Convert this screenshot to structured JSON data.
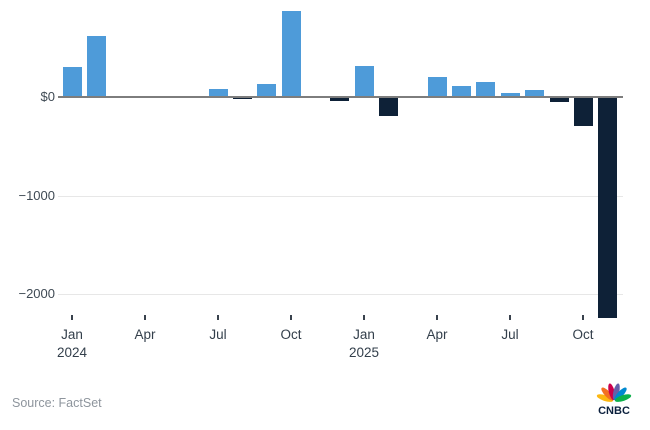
{
  "chart_data": {
    "type": "bar",
    "x": [
      "Jan 2024",
      "Feb 2024",
      "Mar 2024",
      "Apr 2024",
      "May 2024",
      "Jun 2024",
      "Jul 2024",
      "Aug 2024",
      "Sep 2024",
      "Oct 2024",
      "Nov 2024",
      "Dec 2024",
      "Jan 2025",
      "Feb 2025",
      "Mar 2025",
      "Apr 2025",
      "May 2025",
      "Jun 2025",
      "Jul 2025",
      "Aug 2025",
      "Sep 2025",
      "Oct 2025",
      "Nov 2025"
    ],
    "values": [
      300,
      620,
      0,
      0,
      0,
      0,
      80,
      -15,
      130,
      870,
      0,
      -45,
      310,
      -190,
      0,
      205,
      110,
      150,
      40,
      75,
      -55,
      -290,
      -2240
    ],
    "title": "",
    "xlabel": "",
    "ylabel": "",
    "ylim": [
      -2300,
      900
    ],
    "grid": "horizontal",
    "legend": "none",
    "yticks": [
      {
        "label": "$0",
        "value": 0
      },
      {
        "label": "−1000",
        "value": -1000
      },
      {
        "label": "−2000",
        "value": -2000
      }
    ],
    "xticks": [
      {
        "index": 0,
        "label": "Jan",
        "year": "2024"
      },
      {
        "index": 3,
        "label": "Apr"
      },
      {
        "index": 6,
        "label": "Jul"
      },
      {
        "index": 9,
        "label": "Oct"
      },
      {
        "index": 12,
        "label": "Jan",
        "year": "2025"
      },
      {
        "index": 15,
        "label": "Apr"
      },
      {
        "index": 18,
        "label": "Jul"
      },
      {
        "index": 21,
        "label": "Oct"
      }
    ],
    "colors": {
      "positive_bar": "#4E9BD9",
      "negative_bar": "#0E2137",
      "baseline": "#7D7D7D",
      "gridline": "#E7E7E7",
      "axis_text": "#3F4A54"
    }
  },
  "footer": {
    "source": "Source: FactSet",
    "logo_text": "CNBC"
  },
  "logo": {
    "feather_colors": [
      "#FCB711",
      "#F37021",
      "#CC004C",
      "#6460AA",
      "#0089D0",
      "#0DB14B"
    ],
    "wordmark_color": "#0A1F3C"
  }
}
